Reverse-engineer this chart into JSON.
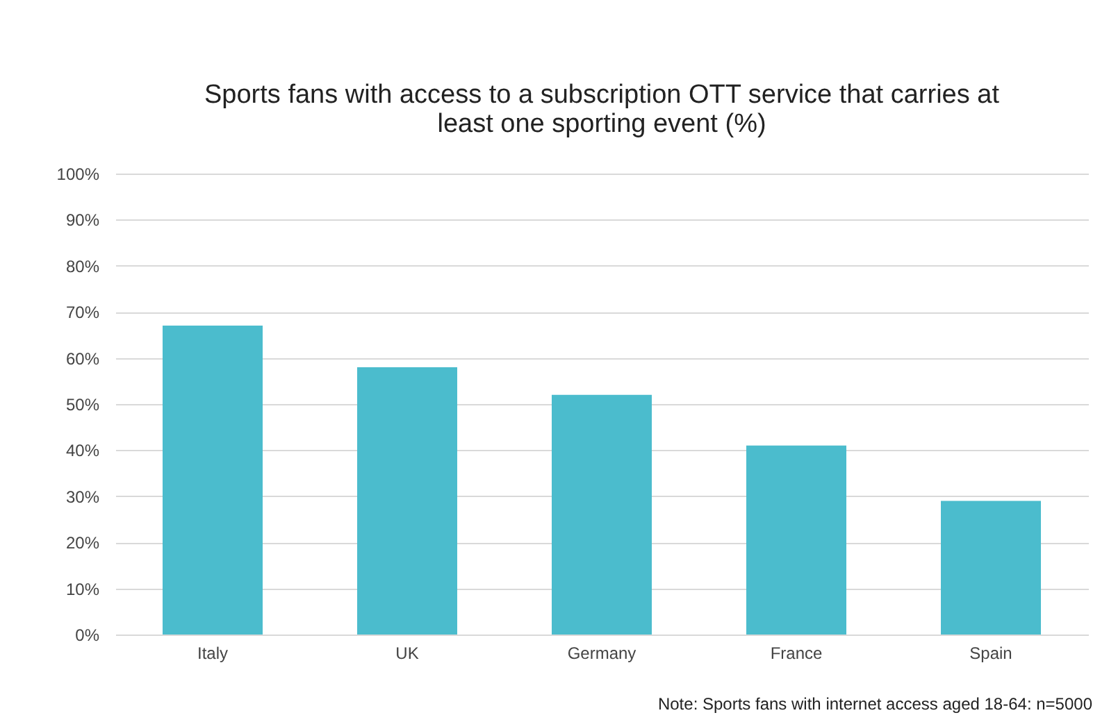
{
  "chart_data": {
    "type": "bar",
    "title": "Sports fans with access to a subscription OTT service that carries at least one sporting event (%)",
    "categories": [
      "Italy",
      "UK",
      "Germany",
      "France",
      "Spain"
    ],
    "values": [
      67,
      58,
      52,
      41,
      29
    ],
    "color": "#4bbccd",
    "ylim": [
      0,
      100
    ],
    "yticks": [
      {
        "value": 0,
        "label": "0%"
      },
      {
        "value": 10,
        "label": "10%"
      },
      {
        "value": 20,
        "label": "20%"
      },
      {
        "value": 30,
        "label": "30%"
      },
      {
        "value": 40,
        "label": "40%"
      },
      {
        "value": 50,
        "label": "50%"
      },
      {
        "value": 60,
        "label": "60%"
      },
      {
        "value": 70,
        "label": "70%"
      },
      {
        "value": 80,
        "label": "80%"
      },
      {
        "value": 90,
        "label": "90%"
      },
      {
        "value": 100,
        "label": "100%"
      }
    ],
    "grid": "y",
    "annotations": [
      "Note: Sports fans with internet access aged 18-64: n=5000"
    ]
  }
}
